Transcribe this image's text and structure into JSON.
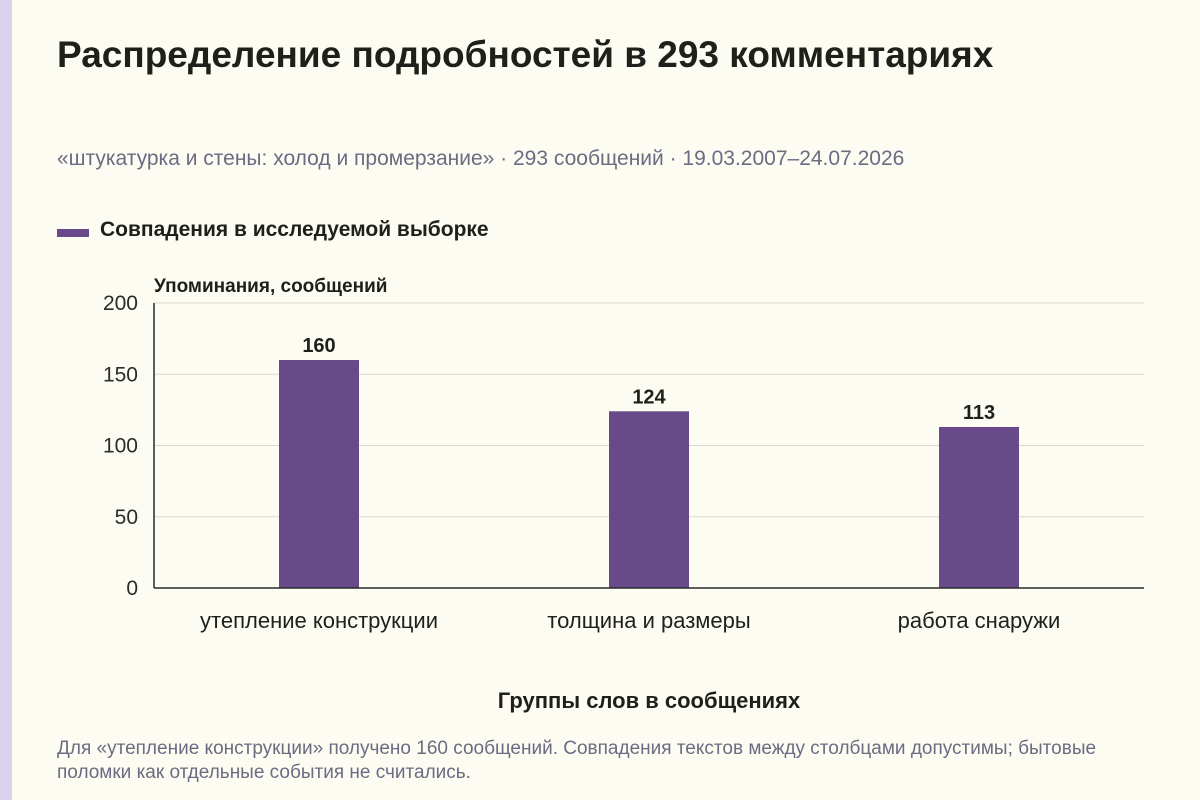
{
  "colors": {
    "background": "#fdfcf3",
    "bar": "#684a8a",
    "accent_strip": "#ddd2ee",
    "grid": "#d9d8d0",
    "axis": "#2b2b2b",
    "muted_text": "#6e6a82"
  },
  "chart_data": {
    "type": "bar",
    "title": "Распределение подробностей в 293 комментариях",
    "subtitle": "«штукатурка и стены: холод и промерзание» · 293 сообщений · 19.03.2007–24.07.2026",
    "ylabel": "Упоминания, сообщений",
    "xlabel": "Группы слов в сообщениях",
    "ylim": [
      0,
      200
    ],
    "yticks": [
      0,
      50,
      100,
      150,
      200
    ],
    "grid": true,
    "legend_position": "top-left",
    "categories": [
      "утепление конструкции",
      "толщина и размеры",
      "работа снаружи"
    ],
    "series": [
      {
        "name": "Совпадения в исследуемой выборке",
        "color": "#684a8a",
        "values": [
          160,
          124,
          113
        ]
      }
    ]
  },
  "note": "Для «утепление конструкции» получено 160 сообщений. Совпадения текстов между столбцами допустимы; бытовые поломки как отдельные события не считались."
}
